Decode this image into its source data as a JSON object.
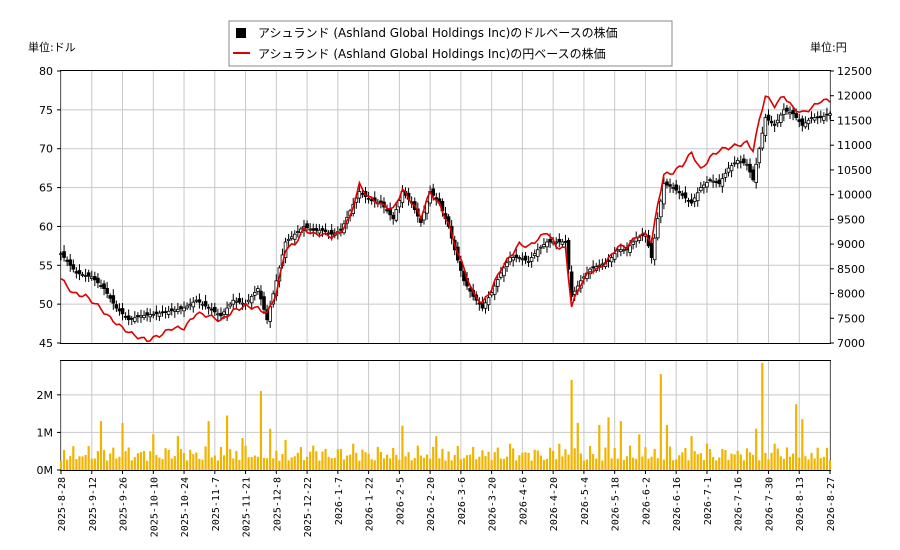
{
  "legend": {
    "usd_label": "アシュランド (Ashland Global Holdings Inc)のドルベースの株価",
    "jpy_label": "アシュランド (Ashland Global Holdings Inc)の円ベースの株価"
  },
  "units": {
    "left": "単位:ドル",
    "right": "単位:円"
  },
  "colors": {
    "candle": "#000000",
    "jpy_line": "#dd0000",
    "volume": "#f0b400",
    "grid": "#c8c8c8"
  },
  "chart_data": [
    {
      "type": "candlestick",
      "series": [
        {
          "name": "アシュランド (Ashland Global Holdings Inc)のドルベースの株価",
          "axis": "left"
        },
        {
          "name": "アシュランド (Ashland Global Holdings Inc)の円ベースの株価",
          "axis": "right"
        }
      ],
      "ylim_left": [
        45,
        80
      ],
      "yticks_left": [
        45,
        50,
        55,
        60,
        65,
        70,
        75,
        80
      ],
      "ylim_right": [
        7000,
        12500
      ],
      "yticks_right": [
        7000,
        7500,
        8000,
        8500,
        9000,
        9500,
        10000,
        10500,
        11000,
        11500,
        12000,
        12500
      ],
      "grid": true,
      "date_labels": [
        "2025-8-28",
        "2025-9-12",
        "2025-9-26",
        "2025-10-10",
        "2025-10-24",
        "2025-11-7",
        "2025-11-21",
        "2025-12-8",
        "2025-12-22",
        "2026-1-7",
        "2026-1-22",
        "2026-2-5",
        "2026-2-20",
        "2026-3-6",
        "2026-3-20",
        "2026-4-6",
        "2026-4-20",
        "2026-5-4",
        "2026-5-18",
        "2026-6-2",
        "2026-6-16",
        "2026-7-1",
        "2026-7-16",
        "2026-7-30",
        "2026-8-13",
        "2026-8-27"
      ],
      "usd_anchors": [
        [
          0,
          56.5
        ],
        [
          5,
          54
        ],
        [
          10,
          53.5
        ],
        [
          14,
          52
        ],
        [
          18,
          49.5
        ],
        [
          22,
          48
        ],
        [
          26,
          48.5
        ],
        [
          30,
          48.7
        ],
        [
          34,
          49
        ],
        [
          40,
          49.5
        ],
        [
          44,
          50.5
        ],
        [
          48,
          49.5
        ],
        [
          52,
          48.5
        ],
        [
          56,
          50.5
        ],
        [
          60,
          50
        ],
        [
          64,
          52
        ],
        [
          67,
          48
        ],
        [
          70,
          53
        ],
        [
          73,
          58
        ],
        [
          76,
          59
        ],
        [
          79,
          60
        ],
        [
          82,
          59.5
        ],
        [
          85,
          59.5
        ],
        [
          88,
          59
        ],
        [
          91,
          59.5
        ],
        [
          94,
          62
        ],
        [
          97,
          64.5
        ],
        [
          100,
          63.5
        ],
        [
          104,
          63
        ],
        [
          108,
          61
        ],
        [
          111,
          64.5
        ],
        [
          114,
          63
        ],
        [
          117,
          60.5
        ],
        [
          120,
          64.5
        ],
        [
          123,
          63
        ],
        [
          126,
          60
        ],
        [
          128,
          57
        ],
        [
          131,
          53
        ],
        [
          134,
          51
        ],
        [
          137,
          49.5
        ],
        [
          140,
          51.5
        ],
        [
          143,
          54
        ],
        [
          146,
          56
        ],
        [
          149,
          56
        ],
        [
          152,
          55.5
        ],
        [
          155,
          57
        ],
        [
          158,
          58
        ],
        [
          161,
          58
        ],
        [
          164,
          58
        ],
        [
          166,
          51
        ],
        [
          169,
          53
        ],
        [
          172,
          54.5
        ],
        [
          175,
          55
        ],
        [
          178,
          55.5
        ],
        [
          181,
          57
        ],
        [
          184,
          57
        ],
        [
          187,
          58.5
        ],
        [
          190,
          59
        ],
        [
          192,
          56
        ],
        [
          194,
          61
        ],
        [
          196,
          65.5
        ],
        [
          199,
          65
        ],
        [
          202,
          64
        ],
        [
          205,
          63
        ],
        [
          208,
          65
        ],
        [
          211,
          66
        ],
        [
          214,
          65.5
        ],
        [
          217,
          67.5
        ],
        [
          220,
          68.5
        ],
        [
          223,
          68
        ],
        [
          225,
          66
        ],
        [
          227,
          70
        ],
        [
          229,
          74
        ],
        [
          232,
          73
        ],
        [
          235,
          75
        ],
        [
          238,
          74.5
        ],
        [
          241,
          73
        ],
        [
          244,
          74
        ],
        [
          247,
          74
        ],
        [
          250,
          74.5
        ]
      ],
      "jpy_anchors": [
        [
          0,
          8300
        ],
        [
          4,
          8000
        ],
        [
          8,
          7950
        ],
        [
          12,
          7750
        ],
        [
          16,
          7500
        ],
        [
          20,
          7300
        ],
        [
          24,
          7150
        ],
        [
          28,
          7050
        ],
        [
          32,
          7150
        ],
        [
          36,
          7300
        ],
        [
          40,
          7300
        ],
        [
          44,
          7600
        ],
        [
          48,
          7550
        ],
        [
          52,
          7450
        ],
        [
          56,
          7650
        ],
        [
          60,
          7750
        ],
        [
          64,
          7700
        ],
        [
          67,
          7600
        ],
        [
          70,
          8000
        ],
        [
          73,
          8900
        ],
        [
          76,
          9000
        ],
        [
          79,
          9300
        ],
        [
          82,
          9200
        ],
        [
          85,
          9200
        ],
        [
          88,
          9150
        ],
        [
          91,
          9250
        ],
        [
          94,
          9550
        ],
        [
          97,
          10200
        ],
        [
          100,
          9950
        ],
        [
          104,
          9800
        ],
        [
          108,
          9700
        ],
        [
          111,
          10100
        ],
        [
          114,
          9850
        ],
        [
          117,
          9550
        ],
        [
          120,
          10050
        ],
        [
          123,
          9800
        ],
        [
          126,
          9400
        ],
        [
          128,
          9000
        ],
        [
          131,
          8500
        ],
        [
          134,
          8000
        ],
        [
          137,
          7800
        ],
        [
          140,
          8100
        ],
        [
          143,
          8500
        ],
        [
          146,
          8750
        ],
        [
          149,
          9000
        ],
        [
          152,
          8950
        ],
        [
          155,
          9100
        ],
        [
          158,
          9250
        ],
        [
          161,
          8950
        ],
        [
          164,
          8900
        ],
        [
          166,
          7750
        ],
        [
          169,
          8200
        ],
        [
          172,
          8450
        ],
        [
          175,
          8500
        ],
        [
          178,
          8700
        ],
        [
          181,
          8950
        ],
        [
          184,
          8950
        ],
        [
          187,
          9150
        ],
        [
          190,
          9200
        ],
        [
          192,
          9050
        ],
        [
          194,
          9800
        ],
        [
          196,
          10400
        ],
        [
          199,
          10450
        ],
        [
          202,
          10600
        ],
        [
          205,
          10850
        ],
        [
          208,
          10500
        ],
        [
          211,
          10750
        ],
        [
          214,
          10900
        ],
        [
          217,
          10950
        ],
        [
          220,
          11000
        ],
        [
          223,
          11050
        ],
        [
          225,
          10900
        ],
        [
          227,
          11500
        ],
        [
          229,
          12000
        ],
        [
          232,
          11800
        ],
        [
          235,
          12000
        ],
        [
          238,
          11750
        ],
        [
          241,
          11650
        ],
        [
          244,
          11750
        ],
        [
          247,
          11900
        ],
        [
          250,
          11900
        ]
      ],
      "volume": {
        "ylim": [
          0,
          2900000
        ],
        "yticks": [
          0,
          1000000,
          2000000
        ],
        "ytick_labels": [
          "0M",
          "1M",
          "2M"
        ],
        "baseline": 450000,
        "spikes": [
          [
            13,
            1300000
          ],
          [
            20,
            1250000
          ],
          [
            30,
            950000
          ],
          [
            38,
            900000
          ],
          [
            48,
            1300000
          ],
          [
            54,
            1450000
          ],
          [
            59,
            850000
          ],
          [
            65,
            2100000
          ],
          [
            68,
            1100000
          ],
          [
            73,
            800000
          ],
          [
            82,
            650000
          ],
          [
            95,
            700000
          ],
          [
            111,
            1180000
          ],
          [
            122,
            900000
          ],
          [
            146,
            700000
          ],
          [
            162,
            700000
          ],
          [
            166,
            2400000
          ],
          [
            168,
            1250000
          ],
          [
            175,
            1200000
          ],
          [
            178,
            1400000
          ],
          [
            182,
            1300000
          ],
          [
            188,
            950000
          ],
          [
            195,
            2550000
          ],
          [
            197,
            1200000
          ],
          [
            205,
            900000
          ],
          [
            210,
            700000
          ],
          [
            226,
            1100000
          ],
          [
            228,
            2850000
          ],
          [
            232,
            700000
          ],
          [
            239,
            1750000
          ],
          [
            241,
            1350000
          ]
        ]
      }
    }
  ]
}
